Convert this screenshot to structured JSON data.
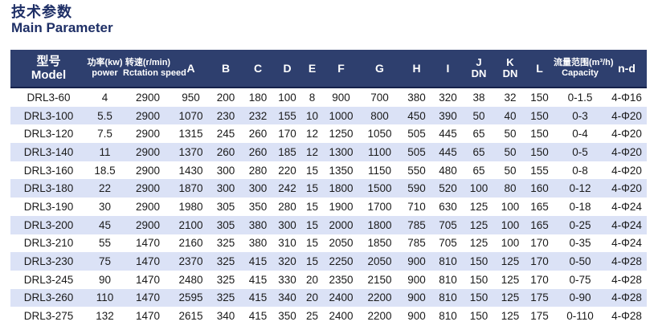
{
  "header": {
    "title_zh": "技术参数",
    "title_en": "Main Parameter"
  },
  "colors": {
    "header_bg": "#2e3f6e",
    "stripe_bg": "#dbe2f6",
    "title_text": "#1e2f66",
    "header_text": "#ffffff",
    "cell_text": "#1a1a1a"
  },
  "table": {
    "columns": {
      "model": {
        "zh": "型号",
        "en": "Model"
      },
      "power": {
        "zh": "功率(kw)",
        "en": "power"
      },
      "speed": {
        "zh": "转速(r/min)",
        "en": "Rctation speed"
      },
      "letters": {
        "A": "A",
        "B": "B",
        "C": "C",
        "D": "D",
        "E": "E",
        "F": "F",
        "G": "G",
        "H": "H",
        "I": "I",
        "L": "L"
      },
      "j": {
        "top": "J",
        "bottom": "DN"
      },
      "k": {
        "top": "K",
        "bottom": "DN"
      },
      "capacity": {
        "zh": "流量范围(m³/h)",
        "en": "Capacity"
      },
      "nd": "n-d"
    },
    "rows": [
      [
        "DRL3-60",
        "4",
        "2900",
        "950",
        "200",
        "180",
        "100",
        "8",
        "900",
        "700",
        "380",
        "320",
        "38",
        "32",
        "150",
        "0-1.5",
        "4-Φ16"
      ],
      [
        "DRL3-100",
        "5.5",
        "2900",
        "1070",
        "230",
        "232",
        "155",
        "10",
        "1000",
        "800",
        "450",
        "390",
        "50",
        "40",
        "150",
        "0-3",
        "4-Φ20"
      ],
      [
        "DRL3-120",
        "7.5",
        "2900",
        "1315",
        "245",
        "260",
        "170",
        "12",
        "1250",
        "1050",
        "505",
        "445",
        "65",
        "50",
        "150",
        "0-4",
        "4-Φ20"
      ],
      [
        "DRL3-140",
        "11",
        "2900",
        "1370",
        "260",
        "260",
        "185",
        "12",
        "1300",
        "1100",
        "505",
        "445",
        "65",
        "50",
        "150",
        "0-5",
        "4-Φ20"
      ],
      [
        "DRL3-160",
        "18.5",
        "2900",
        "1430",
        "300",
        "280",
        "220",
        "15",
        "1350",
        "1150",
        "550",
        "480",
        "65",
        "50",
        "155",
        "0-8",
        "4-Φ20"
      ],
      [
        "DRL3-180",
        "22",
        "2900",
        "1870",
        "300",
        "300",
        "242",
        "15",
        "1800",
        "1500",
        "590",
        "520",
        "100",
        "80",
        "160",
        "0-12",
        "4-Φ20"
      ],
      [
        "DRL3-190",
        "30",
        "2900",
        "1980",
        "305",
        "350",
        "280",
        "15",
        "1900",
        "1700",
        "710",
        "630",
        "125",
        "100",
        "165",
        "0-18",
        "4-Φ24"
      ],
      [
        "DRL3-200",
        "45",
        "2900",
        "2100",
        "305",
        "380",
        "300",
        "15",
        "2000",
        "1800",
        "785",
        "705",
        "125",
        "100",
        "165",
        "0-25",
        "4-Φ24"
      ],
      [
        "DRL3-210",
        "55",
        "1470",
        "2160",
        "325",
        "380",
        "310",
        "15",
        "2050",
        "1850",
        "785",
        "705",
        "125",
        "100",
        "170",
        "0-35",
        "4-Φ24"
      ],
      [
        "DRL3-230",
        "75",
        "1470",
        "2370",
        "325",
        "415",
        "320",
        "15",
        "2250",
        "2050",
        "900",
        "810",
        "150",
        "125",
        "170",
        "0-50",
        "4-Φ28"
      ],
      [
        "DRL3-245",
        "90",
        "1470",
        "2480",
        "325",
        "415",
        "330",
        "20",
        "2350",
        "2150",
        "900",
        "810",
        "150",
        "125",
        "170",
        "0-75",
        "4-Φ28"
      ],
      [
        "DRL3-260",
        "110",
        "1470",
        "2595",
        "325",
        "415",
        "340",
        "20",
        "2400",
        "2200",
        "900",
        "810",
        "150",
        "125",
        "175",
        "0-90",
        "4-Φ28"
      ],
      [
        "DRL3-275",
        "132",
        "1470",
        "2615",
        "340",
        "415",
        "350",
        "25",
        "2400",
        "2200",
        "900",
        "810",
        "150",
        "125",
        "175",
        "0-110",
        "4-Φ28"
      ]
    ]
  }
}
